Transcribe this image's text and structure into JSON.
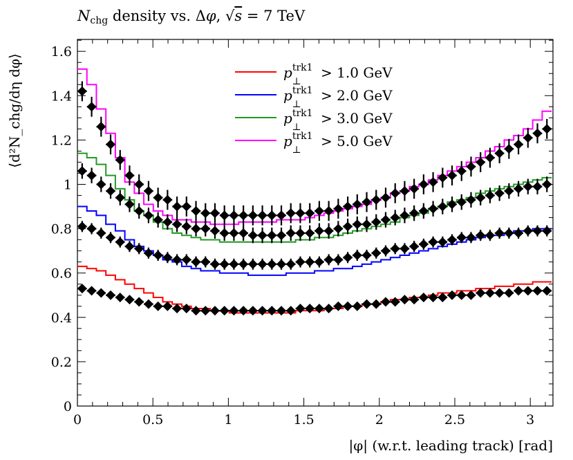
{
  "chart_data": {
    "type": "line",
    "title": "N_chg density vs. Δφ, √s = 7 TeV",
    "title_parts": {
      "n": "N",
      "sub": "chg",
      "rest": " density vs. Δ",
      "phi": "φ",
      "comma": ", ",
      "sqrt": "√",
      "s": "s",
      "eq": " = 7 TeV"
    },
    "xlabel": "|φ| (w.r.t. leading track) [rad]",
    "ylabel": "⟨d²N_chg/dη dφ⟩",
    "xlim": [
      0,
      3.1416
    ],
    "ylim": [
      0,
      1.65
    ],
    "x_ticks": [
      "0",
      "0.5",
      "1",
      "1.5",
      "2",
      "2.5",
      "3"
    ],
    "y_ticks": [
      "0",
      "0.2",
      "0.4",
      "0.6",
      "0.8",
      "1",
      "1.2",
      "1.4",
      "1.6"
    ],
    "grid": false,
    "legend_position": "top-center",
    "n_bins": 50,
    "series": [
      {
        "name": "p⊥trk1 > 1.0 GeV",
        "label_cut": "> 1.0 GeV",
        "color": "#ff0000",
        "mc": [
          0.63,
          0.62,
          0.61,
          0.59,
          0.57,
          0.55,
          0.53,
          0.51,
          0.49,
          0.47,
          0.46,
          0.45,
          0.44,
          0.44,
          0.43,
          0.43,
          0.42,
          0.42,
          0.42,
          0.42,
          0.42,
          0.42,
          0.42,
          0.43,
          0.43,
          0.43,
          0.44,
          0.44,
          0.45,
          0.45,
          0.46,
          0.46,
          0.47,
          0.48,
          0.48,
          0.49,
          0.49,
          0.5,
          0.51,
          0.51,
          0.52,
          0.52,
          0.53,
          0.53,
          0.54,
          0.54,
          0.55,
          0.55,
          0.56,
          0.56
        ],
        "data": [
          0.53,
          0.52,
          0.51,
          0.5,
          0.49,
          0.48,
          0.47,
          0.46,
          0.45,
          0.45,
          0.44,
          0.44,
          0.43,
          0.43,
          0.43,
          0.43,
          0.43,
          0.43,
          0.43,
          0.43,
          0.43,
          0.43,
          0.43,
          0.44,
          0.44,
          0.44,
          0.44,
          0.45,
          0.45,
          0.45,
          0.46,
          0.46,
          0.47,
          0.47,
          0.48,
          0.48,
          0.49,
          0.49,
          0.49,
          0.5,
          0.5,
          0.5,
          0.51,
          0.51,
          0.51,
          0.51,
          0.52,
          0.52,
          0.52,
          0.52
        ],
        "data_err": 0.01
      },
      {
        "name": "p⊥trk1 > 2.0 GeV",
        "label_cut": "> 2.0 GeV",
        "color": "#0000ff",
        "mc": [
          0.9,
          0.88,
          0.86,
          0.82,
          0.79,
          0.75,
          0.72,
          0.7,
          0.68,
          0.66,
          0.65,
          0.63,
          0.62,
          0.61,
          0.61,
          0.6,
          0.6,
          0.6,
          0.59,
          0.59,
          0.59,
          0.59,
          0.6,
          0.6,
          0.6,
          0.61,
          0.61,
          0.62,
          0.62,
          0.63,
          0.64,
          0.65,
          0.66,
          0.67,
          0.68,
          0.69,
          0.7,
          0.71,
          0.72,
          0.73,
          0.74,
          0.75,
          0.76,
          0.77,
          0.77,
          0.78,
          0.79,
          0.79,
          0.8,
          0.8
        ],
        "data": [
          0.81,
          0.8,
          0.78,
          0.76,
          0.74,
          0.72,
          0.71,
          0.69,
          0.68,
          0.67,
          0.66,
          0.66,
          0.65,
          0.65,
          0.64,
          0.64,
          0.64,
          0.64,
          0.64,
          0.64,
          0.64,
          0.64,
          0.64,
          0.65,
          0.65,
          0.65,
          0.66,
          0.66,
          0.67,
          0.68,
          0.68,
          0.69,
          0.7,
          0.71,
          0.71,
          0.72,
          0.73,
          0.74,
          0.74,
          0.75,
          0.76,
          0.76,
          0.77,
          0.77,
          0.78,
          0.78,
          0.78,
          0.79,
          0.79,
          0.79
        ],
        "data_err": 0.025
      },
      {
        "name": "p⊥trk1 > 3.0 GeV",
        "label_cut": "> 3.0 GeV",
        "color": "#229922",
        "mc": [
          1.14,
          1.12,
          1.09,
          1.04,
          0.98,
          0.93,
          0.88,
          0.86,
          0.83,
          0.8,
          0.78,
          0.77,
          0.76,
          0.75,
          0.75,
          0.74,
          0.74,
          0.74,
          0.74,
          0.74,
          0.74,
          0.74,
          0.74,
          0.75,
          0.75,
          0.76,
          0.76,
          0.77,
          0.78,
          0.79,
          0.8,
          0.81,
          0.82,
          0.83,
          0.85,
          0.86,
          0.87,
          0.89,
          0.9,
          0.92,
          0.93,
          0.94,
          0.96,
          0.97,
          0.98,
          0.99,
          1.0,
          1.01,
          1.02,
          1.03
        ],
        "data": [
          1.06,
          1.04,
          1.0,
          0.97,
          0.94,
          0.91,
          0.88,
          0.86,
          0.84,
          0.83,
          0.82,
          0.81,
          0.8,
          0.8,
          0.79,
          0.78,
          0.78,
          0.78,
          0.77,
          0.77,
          0.77,
          0.77,
          0.78,
          0.78,
          0.78,
          0.79,
          0.79,
          0.8,
          0.81,
          0.82,
          0.82,
          0.83,
          0.84,
          0.85,
          0.86,
          0.87,
          0.88,
          0.89,
          0.9,
          0.91,
          0.92,
          0.93,
          0.94,
          0.95,
          0.96,
          0.97,
          0.98,
          0.99,
          0.99,
          1.0
        ],
        "data_err": 0.035
      },
      {
        "name": "p⊥trk1 > 5.0 GeV",
        "label_cut": "> 5.0 GeV",
        "color": "#ff00ff",
        "mc": [
          1.52,
          1.45,
          1.34,
          1.23,
          1.12,
          1.01,
          0.96,
          0.91,
          0.88,
          0.86,
          0.84,
          0.84,
          0.83,
          0.83,
          0.82,
          0.82,
          0.82,
          0.83,
          0.83,
          0.83,
          0.83,
          0.84,
          0.84,
          0.84,
          0.85,
          0.86,
          0.87,
          0.88,
          0.89,
          0.9,
          0.91,
          0.93,
          0.94,
          0.96,
          0.97,
          0.99,
          1.0,
          1.02,
          1.04,
          1.06,
          1.08,
          1.1,
          1.12,
          1.15,
          1.17,
          1.2,
          1.22,
          1.25,
          1.29,
          1.33
        ],
        "data": [
          1.42,
          1.35,
          1.26,
          1.18,
          1.11,
          1.04,
          1.0,
          0.97,
          0.94,
          0.93,
          0.9,
          0.9,
          0.88,
          0.87,
          0.87,
          0.86,
          0.86,
          0.86,
          0.86,
          0.86,
          0.86,
          0.86,
          0.87,
          0.87,
          0.87,
          0.88,
          0.88,
          0.89,
          0.9,
          0.91,
          0.92,
          0.93,
          0.94,
          0.96,
          0.97,
          0.98,
          1.0,
          1.01,
          1.03,
          1.04,
          1.06,
          1.08,
          1.1,
          1.12,
          1.14,
          1.16,
          1.18,
          1.21,
          1.23,
          1.25
        ],
        "data_err": 0.045
      }
    ]
  }
}
